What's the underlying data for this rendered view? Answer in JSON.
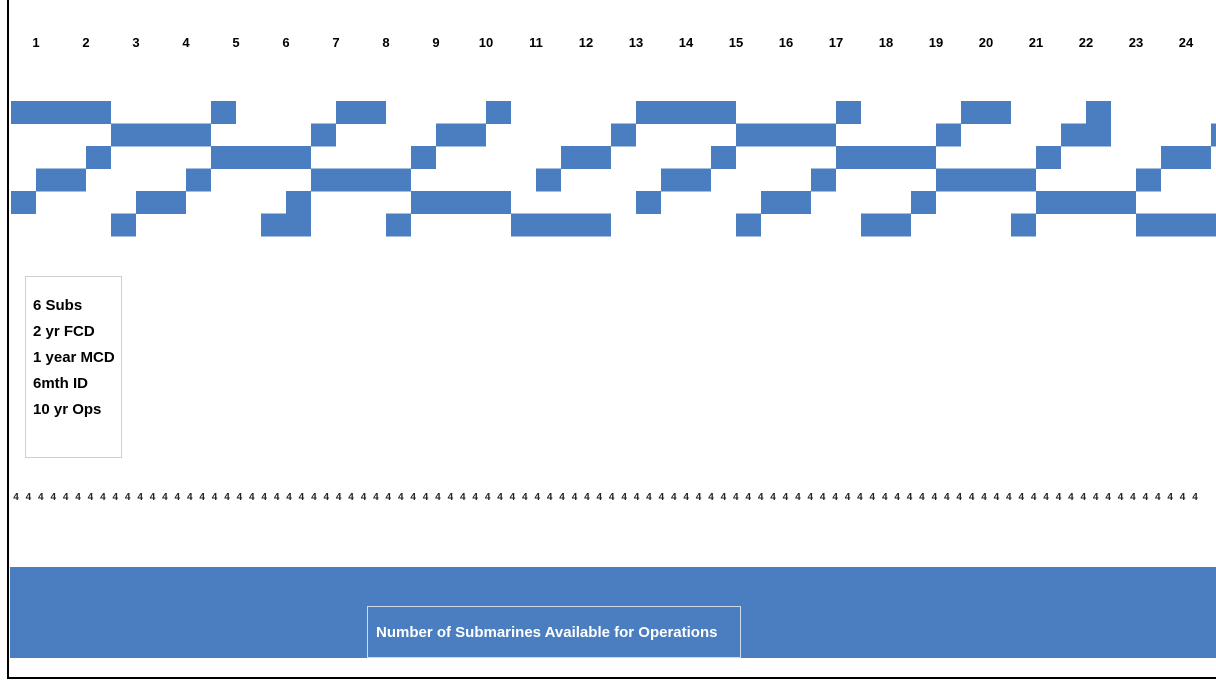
{
  "chart_data": {
    "type": "gantt",
    "title": "",
    "x_label": "",
    "y_label": "",
    "x_axis": {
      "unit": "year",
      "ticks": [
        "1",
        "2",
        "3",
        "4",
        "5",
        "6",
        "7",
        "8",
        "9",
        "10",
        "11",
        "12",
        "13",
        "14",
        "15",
        "16",
        "17",
        "18",
        "19",
        "20",
        "21",
        "22",
        "23",
        "24"
      ],
      "xlim": [
        0.5,
        24.6
      ]
    },
    "color": "#4a7ec1",
    "rows": [
      {
        "bars": [
          [
            0.5,
            2.5
          ],
          [
            4.5,
            5.0
          ],
          [
            7.0,
            8.0
          ],
          [
            10.0,
            10.5
          ],
          [
            13.0,
            15.0
          ],
          [
            17.0,
            17.5
          ],
          [
            19.5,
            20.5
          ],
          [
            22.0,
            22.5
          ]
        ]
      },
      {
        "bars": [
          [
            2.5,
            4.5
          ],
          [
            6.5,
            7.0
          ],
          [
            9.0,
            10.0
          ],
          [
            12.5,
            13.0
          ],
          [
            15.0,
            17.0
          ],
          [
            19.0,
            19.5
          ],
          [
            21.5,
            22.5
          ],
          [
            24.5,
            25.0
          ]
        ]
      },
      {
        "bars": [
          [
            2.0,
            2.5
          ],
          [
            4.5,
            6.5
          ],
          [
            8.5,
            9.0
          ],
          [
            11.5,
            12.5
          ],
          [
            14.5,
            15.0
          ],
          [
            17.0,
            19.0
          ],
          [
            21.0,
            21.5
          ],
          [
            23.5,
            24.5
          ]
        ]
      },
      {
        "bars": [
          [
            1.0,
            2.0
          ],
          [
            4.0,
            4.5
          ],
          [
            6.5,
            8.5
          ],
          [
            11.0,
            11.5
          ],
          [
            13.5,
            14.5
          ],
          [
            16.5,
            17.0
          ],
          [
            19.0,
            21.0
          ],
          [
            23.0,
            23.5
          ]
        ]
      },
      {
        "bars": [
          [
            0.5,
            1.0
          ],
          [
            3.0,
            4.0
          ],
          [
            6.0,
            6.5
          ],
          [
            8.5,
            10.5
          ],
          [
            13.0,
            13.5
          ],
          [
            15.5,
            16.5
          ],
          [
            18.5,
            19.0
          ],
          [
            21.0,
            23.0
          ]
        ]
      },
      {
        "bars": [
          [
            2.5,
            3.0
          ],
          [
            5.5,
            6.5
          ],
          [
            8.0,
            8.5
          ],
          [
            10.5,
            12.5
          ],
          [
            15.0,
            15.5
          ],
          [
            17.5,
            18.5
          ],
          [
            20.5,
            21.0
          ],
          [
            23.0,
            25.0
          ]
        ]
      }
    ],
    "availability_row": {
      "value": 4,
      "count": 96
    },
    "legend_lines": [
      "6 Subs",
      "2 yr FCD",
      "1 year MCD",
      "6mth ID",
      "10 yr Ops"
    ],
    "band_label": "Number of Submarines Available for Operations"
  }
}
